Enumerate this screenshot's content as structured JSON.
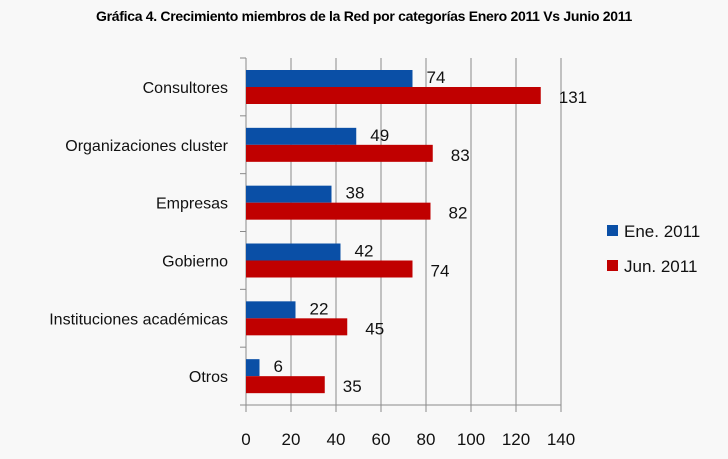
{
  "chart_data": {
    "type": "bar",
    "orientation": "horizontal",
    "title": "Gráfica 4. Crecimiento miembros de la Red por categorías Enero 2011 Vs Junio 2011",
    "categories": [
      "Consultores",
      "Organizaciones cluster",
      "Empresas",
      "Gobierno",
      "Instituciones académicas",
      "Otros"
    ],
    "series": [
      {
        "name": "Ene. 2011",
        "color": "#0a4fa6",
        "values": [
          74,
          49,
          38,
          42,
          22,
          6
        ]
      },
      {
        "name": "Jun. 2011",
        "color": "#c00000",
        "values": [
          131,
          83,
          82,
          74,
          45,
          35
        ]
      }
    ],
    "xlim": [
      0,
      140
    ],
    "xticks": [
      "0",
      "20",
      "40",
      "60",
      "80",
      "100",
      "120",
      "140"
    ],
    "xlabel": "",
    "ylabel": "",
    "grid": true,
    "legend": "right"
  }
}
